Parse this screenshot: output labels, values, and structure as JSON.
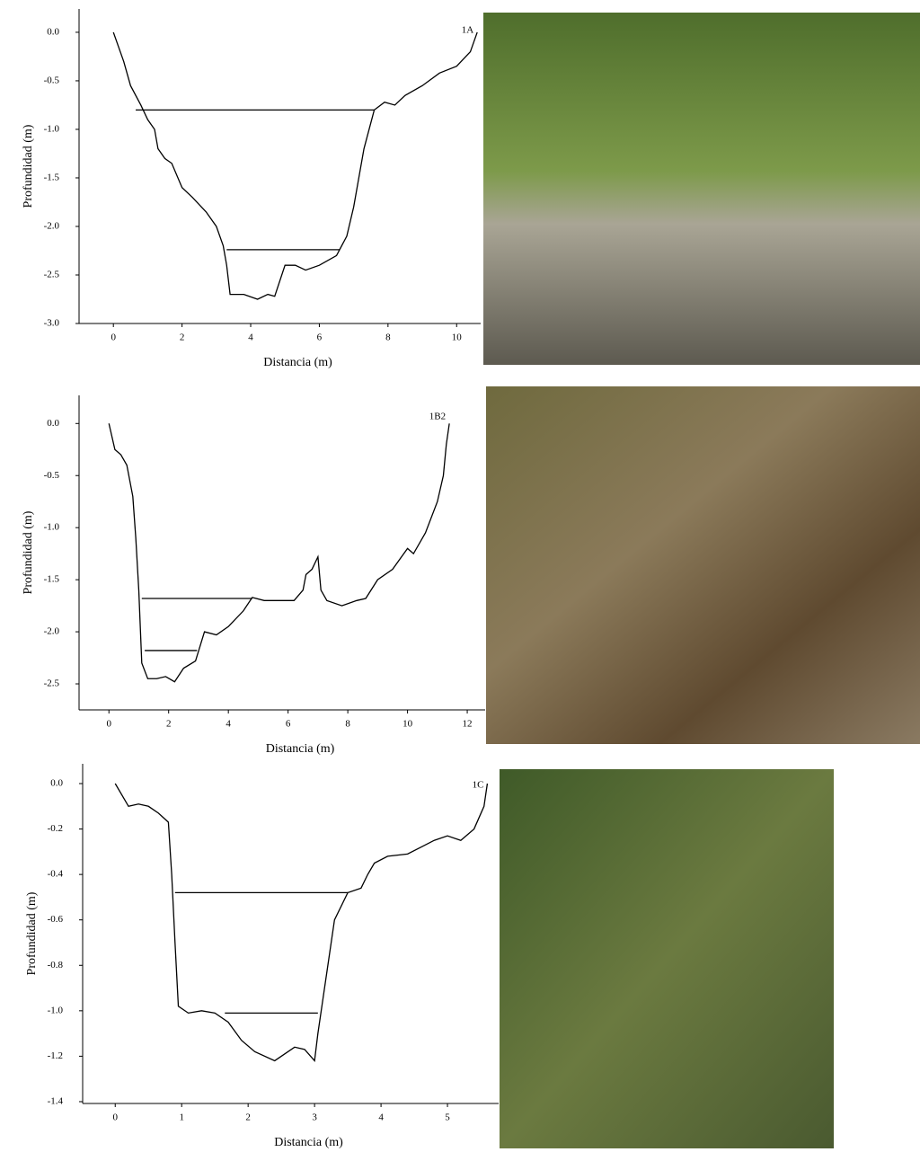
{
  "chart_data": [
    {
      "type": "line",
      "annotation": "1A",
      "x_label": "Distancia (m)",
      "y_label": "Profundidad (m)",
      "xlim": [
        -1,
        10.7
      ],
      "ylim": [
        -3,
        0.24
      ],
      "xticks": [
        0,
        2,
        4,
        6,
        8,
        10
      ],
      "yticks": [
        {
          "value": -3,
          "label": "-3.0"
        },
        -2.5,
        {
          "value": -2,
          "label": "-2.0"
        },
        -1.5,
        {
          "value": -1,
          "label": "-1.0"
        },
        -0.5,
        {
          "value": 0,
          "label": "0.0"
        }
      ],
      "series": [
        {
          "color": "#000000",
          "x": [
            0,
            0.3,
            0.5,
            0.8,
            1,
            1.2,
            1.3,
            1.5,
            1.7,
            2,
            2.3,
            2.7,
            3,
            3.2,
            3.3,
            3.4,
            3.8,
            4.2,
            4.5,
            4.7,
            5,
            5.3,
            5.6,
            6,
            6.5,
            6.8,
            7,
            7.3,
            7.6,
            7.9,
            8.2,
            8.5,
            9,
            9.5,
            10,
            10.4,
            10.6
          ],
          "values": [
            0,
            -0.3,
            -0.55,
            -0.75,
            -0.9,
            -1,
            -1.2,
            -1.3,
            -1.35,
            -1.6,
            -1.7,
            -1.85,
            -2,
            -2.2,
            -2.4,
            -2.7,
            -2.7,
            -2.75,
            -2.7,
            -2.72,
            -2.4,
            -2.4,
            -2.45,
            -2.4,
            -2.3,
            -2.1,
            -1.8,
            -1.2,
            -0.8,
            -0.72,
            -0.75,
            -0.65,
            -0.55,
            -0.42,
            -0.35,
            -0.2,
            0
          ]
        },
        {
          "color": "#000000",
          "x": [
            0.65,
            7.6
          ],
          "values": [
            -0.8,
            -0.8
          ]
        },
        {
          "color": "#000000",
          "x": [
            3.3,
            6.6
          ],
          "values": [
            -2.24,
            -2.24
          ]
        }
      ]
    },
    {
      "type": "line",
      "annotation": "1B2",
      "x_label": "Distancia (m)",
      "y_label": "Profundidad (m)",
      "xlim": [
        -1,
        12.6
      ],
      "ylim": [
        -2.75,
        0.27
      ],
      "xticks": [
        0,
        2,
        4,
        6,
        8,
        10,
        12
      ],
      "yticks": [
        -2.5,
        {
          "value": -2,
          "label": "-2.0"
        },
        -1.5,
        {
          "value": -1,
          "label": "-1.0"
        },
        -0.5,
        {
          "value": 0,
          "label": "0.0"
        }
      ],
      "series": [
        {
          "color": "#000000",
          "x": [
            0,
            0.2,
            0.4,
            0.6,
            0.8,
            0.9,
            1,
            1.1,
            1.3,
            1.6,
            1.9,
            2.2,
            2.5,
            2.9,
            3.2,
            3.6,
            4,
            4.5,
            4.8,
            5.2,
            6.2,
            6.5,
            6.6,
            6.8,
            7,
            7.1,
            7.3,
            7.8,
            8.3,
            8.6,
            9,
            9.5,
            10,
            10.2,
            10.6,
            11,
            11.2,
            11.3,
            11.4
          ],
          "values": [
            0,
            -0.25,
            -0.3,
            -0.4,
            -0.7,
            -1.1,
            -1.6,
            -2.3,
            -2.45,
            -2.45,
            -2.43,
            -2.48,
            -2.35,
            -2.28,
            -2,
            -2.03,
            -1.95,
            -1.8,
            -1.67,
            -1.7,
            -1.7,
            -1.6,
            -1.45,
            -1.4,
            -1.28,
            -1.6,
            -1.7,
            -1.75,
            -1.7,
            -1.68,
            -1.5,
            -1.4,
            -1.2,
            -1.25,
            -1.05,
            -0.75,
            -0.5,
            -0.2,
            0
          ]
        },
        {
          "color": "#000000",
          "x": [
            1.1,
            4.8
          ],
          "values": [
            -1.68,
            -1.68
          ]
        },
        {
          "color": "#000000",
          "x": [
            1.2,
            2.95
          ],
          "values": [
            -2.18,
            -2.18
          ]
        }
      ]
    },
    {
      "type": "line",
      "annotation": "1C",
      "x_label": "Distancia (m)",
      "y_label": "Profundidad (m)",
      "xlim": [
        -0.49,
        5.77
      ],
      "ylim": [
        -1.408,
        0.087
      ],
      "xticks": [
        0,
        1,
        2,
        3,
        4,
        5
      ],
      "yticks": [
        -1.4,
        -1.2,
        {
          "value": -1,
          "label": "-1.0"
        },
        -0.8,
        -0.6,
        -0.4,
        -0.2,
        {
          "value": 0,
          "label": "0.0"
        }
      ],
      "series": [
        {
          "color": "#000000",
          "x": [
            0,
            0.2,
            0.35,
            0.5,
            0.65,
            0.8,
            0.85,
            0.9,
            0.95,
            1.1,
            1.3,
            1.5,
            1.7,
            1.9,
            2.1,
            2.4,
            2.7,
            2.85,
            3,
            3.05,
            3.2,
            3.3,
            3.5,
            3.7,
            3.8,
            3.9,
            4.1,
            4.4,
            4.6,
            4.8,
            5,
            5.2,
            5.4,
            5.55,
            5.6
          ],
          "values": [
            0,
            -0.1,
            -0.09,
            -0.1,
            -0.13,
            -0.17,
            -0.4,
            -0.7,
            -0.98,
            -1.01,
            -1,
            -1.01,
            -1.05,
            -1.13,
            -1.18,
            -1.22,
            -1.16,
            -1.17,
            -1.22,
            -1.1,
            -0.8,
            -0.6,
            -0.48,
            -0.46,
            -0.4,
            -0.35,
            -0.32,
            -0.31,
            -0.28,
            -0.25,
            -0.23,
            -0.25,
            -0.2,
            -0.1,
            0
          ]
        },
        {
          "color": "#000000",
          "x": [
            0.9,
            3.5
          ],
          "values": [
            -0.48,
            -0.48
          ]
        },
        {
          "color": "#000000",
          "x": [
            1.65,
            3.05
          ],
          "values": [
            -1.01,
            -1.01
          ]
        }
      ]
    }
  ]
}
